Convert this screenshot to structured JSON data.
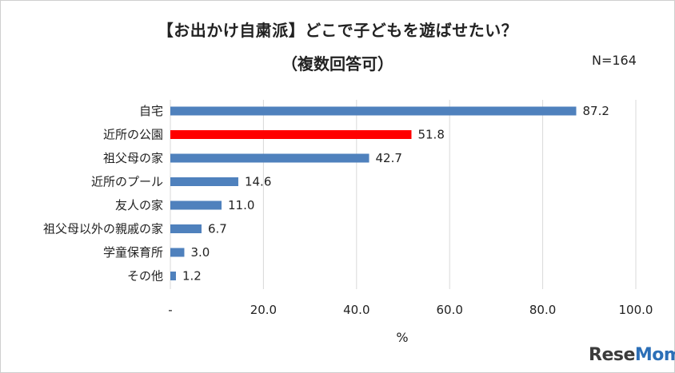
{
  "header": {
    "title_line1": "【お出かけ自粛派】どこで子どもを遊ばせたい？",
    "title_line2": "（複数回答可）",
    "note": "N=164"
  },
  "watermark": {
    "brand_left": "Rese",
    "brand_right": "Mom"
  },
  "chart_data": {
    "type": "bar",
    "orientation": "horizontal",
    "title": "【お出かけ自粛派】どこで子どもを遊ばせたい？（複数回答可）",
    "xlabel": "%",
    "ylabel": "",
    "xlim": [
      0,
      100
    ],
    "x_ticks": [
      0,
      20,
      40,
      60,
      80,
      100
    ],
    "x_tick_labels": [
      "-",
      "20.0",
      "40.0",
      "60.0",
      "80.0",
      "100.0"
    ],
    "grid": "vertical",
    "categories": [
      "自宅",
      "近所の公園",
      "祖父母の家",
      "近所のプール",
      "友人の家",
      "祖父母以外の親戚の家",
      "学童保育所",
      "その他"
    ],
    "values": [
      87.2,
      51.8,
      42.7,
      14.6,
      11.0,
      6.7,
      3.0,
      1.2
    ],
    "value_labels": [
      "87.2",
      "51.8",
      "42.7",
      "14.6",
      "11.0",
      "6.7",
      "3.0",
      "1.2"
    ],
    "highlight_index": 1,
    "colors": {
      "bar": "#4f81bd",
      "highlight": "#ff0000",
      "grid": "#d9d9d9"
    }
  }
}
